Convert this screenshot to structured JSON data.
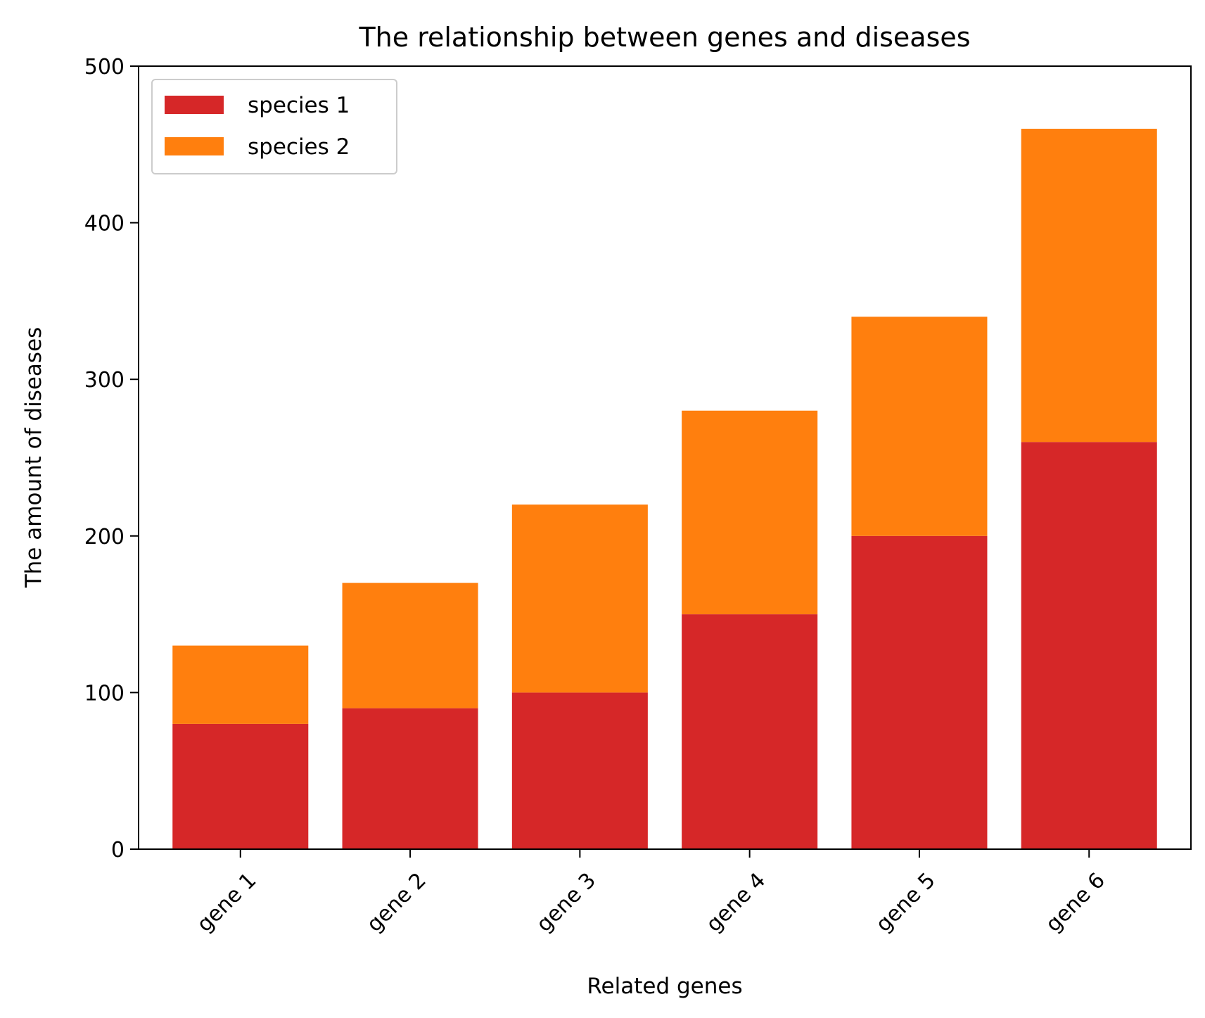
{
  "chart_data": {
    "type": "bar",
    "stacked": true,
    "title": "The relationship between genes and diseases",
    "xlabel": "Related genes",
    "ylabel": "The amount of diseases",
    "categories": [
      "gene 1",
      "gene 2",
      "gene 3",
      "gene 4",
      "gene 5",
      "gene 6"
    ],
    "series": [
      {
        "name": "species 1",
        "color": "#d62728",
        "values": [
          80,
          90,
          100,
          150,
          200,
          260
        ]
      },
      {
        "name": "species 2",
        "color": "#ff7f0e",
        "values": [
          50,
          80,
          120,
          130,
          140,
          200
        ]
      }
    ],
    "ylim": [
      0,
      500
    ],
    "yticks": [
      0,
      100,
      200,
      300,
      400,
      500
    ],
    "grid": false,
    "legend_position": "top-left",
    "xtick_rotation": 45
  }
}
